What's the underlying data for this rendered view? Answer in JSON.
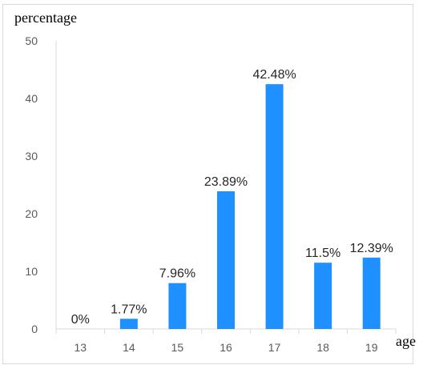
{
  "chart_data": {
    "type": "bar",
    "xlabel": "age",
    "ylabel": "percentage",
    "categories": [
      "13",
      "14",
      "15",
      "16",
      "17",
      "18",
      "19"
    ],
    "values": [
      0,
      1.77,
      7.96,
      23.89,
      42.48,
      11.5,
      12.39
    ],
    "data_labels": [
      "0%",
      "1.77%",
      "7.96%",
      "23.89%",
      "42.48%",
      "11.5%",
      "12.39%"
    ],
    "y_ticks": [
      "0",
      "10",
      "20",
      "30",
      "40",
      "50"
    ],
    "ylim": [
      0,
      50
    ],
    "grid": false,
    "bar_color": "#1e90ff"
  }
}
